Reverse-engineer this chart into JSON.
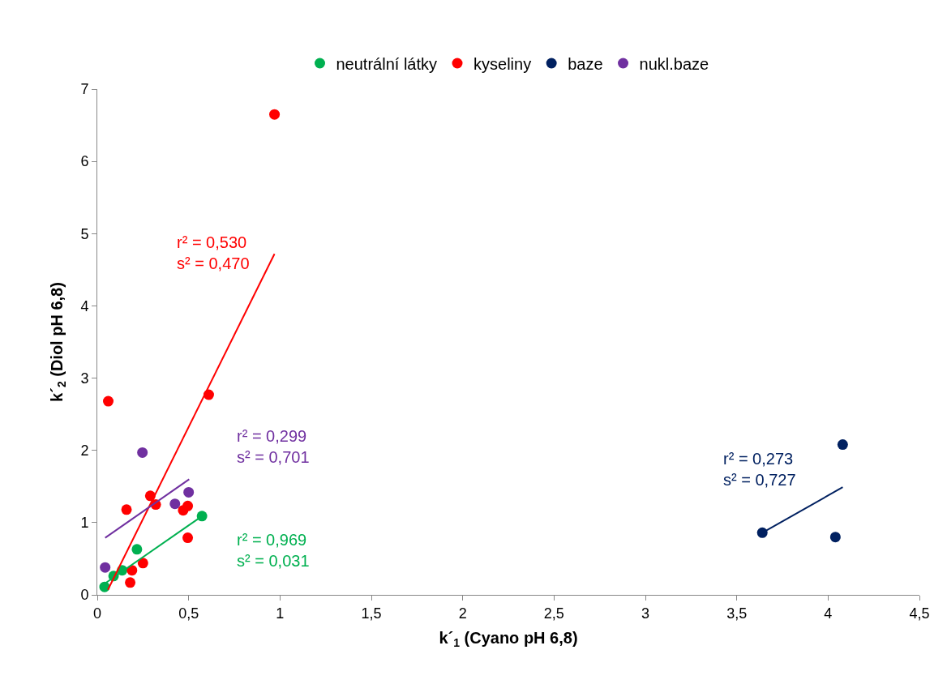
{
  "chart_data": {
    "type": "scatter",
    "xlabel": "k´$_{1}$ (Cyano pH 6,8)",
    "ylabel": "k´$_{2}$ (Diol pH 6,8)",
    "xlim": [
      0,
      4.5
    ],
    "ylim": [
      0,
      7
    ],
    "xticks": [
      {
        "value": 0,
        "label": "0"
      },
      {
        "value": 0.5,
        "label": "0,5"
      },
      {
        "value": 1,
        "label": "1"
      },
      {
        "value": 1.5,
        "label": "1,5"
      },
      {
        "value": 2,
        "label": "2"
      },
      {
        "value": 2.5,
        "label": "2,5"
      },
      {
        "value": 3,
        "label": "3"
      },
      {
        "value": 3.5,
        "label": "3,5"
      },
      {
        "value": 4,
        "label": "4"
      },
      {
        "value": 4.5,
        "label": "4,5"
      }
    ],
    "yticks": [
      0,
      1,
      2,
      3,
      4,
      5,
      6,
      7
    ],
    "grid": false,
    "legend": "top",
    "marker": "circle",
    "series": [
      {
        "name": "neutrální látky",
        "color": "#00b050",
        "x": [
          0.573,
          0.217,
          0.136,
          0.089,
          0.04
        ],
        "values": [
          1.09,
          0.63,
          0.34,
          0.26,
          0.11
        ]
      },
      {
        "name": "kyseliny",
        "color": "#ff0000",
        "x": [
          0.29,
          0.32,
          0.16,
          0.495,
          0.47,
          0.495,
          0.25,
          0.19,
          0.18,
          0.06,
          0.61,
          0.97
        ],
        "values": [
          1.37,
          1.25,
          1.18,
          1.23,
          1.17,
          0.79,
          0.44,
          0.34,
          0.17,
          2.68,
          2.77,
          6.65
        ]
      },
      {
        "name": "baze",
        "color": "#002060",
        "x": [
          3.64,
          4.04,
          4.08
        ],
        "values": [
          0.86,
          0.8,
          2.08
        ]
      },
      {
        "name": "nukl.baze",
        "color": "#7030a0",
        "x": [
          0.247,
          0.5,
          0.425,
          0.043
        ],
        "values": [
          1.97,
          1.42,
          1.26,
          0.38
        ]
      },
      {
        "type": "line",
        "marker": "none",
        "color": "#00b050",
        "x": [
          0.043,
          0.573
        ],
        "values": [
          0.16,
          1.09
        ]
      },
      {
        "type": "line",
        "marker": "none",
        "color": "#ff0000",
        "x": [
          0.058,
          0.97
        ],
        "values": [
          0.07,
          4.72
        ]
      },
      {
        "type": "line",
        "marker": "none",
        "color": "#002060",
        "x": [
          3.64,
          4.08
        ],
        "values": [
          0.86,
          1.49
        ]
      },
      {
        "type": "line",
        "marker": "none",
        "color": "#7030a0",
        "x": [
          0.043,
          0.503
        ],
        "values": [
          0.79,
          1.6
        ]
      }
    ],
    "annotations": [
      "r² = 0,969\ns² = 0,031",
      "r² = 0,530\ns² = 0,470",
      "r² = 0,273\ns² = 0,727",
      "r² = 0,299\ns² = 0,701"
    ]
  }
}
